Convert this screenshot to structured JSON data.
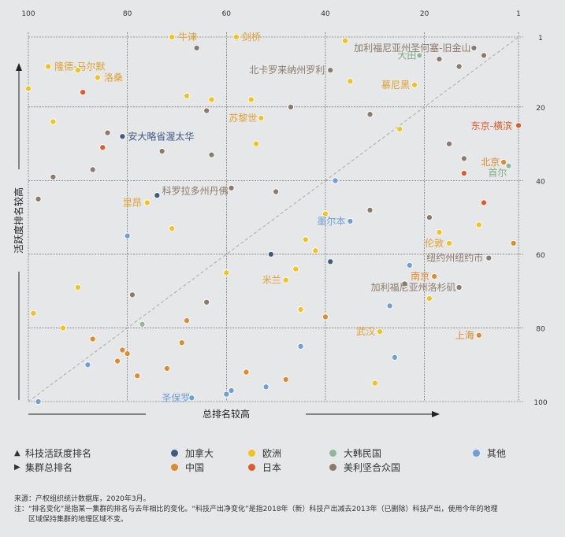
{
  "chart_data": {
    "type": "scatter",
    "x_label": "总排名较高",
    "y_label": "活跃度排名较高",
    "x_ticks": [
      "100",
      "80",
      "60",
      "40",
      "20",
      "1"
    ],
    "y_ticks": [
      "1",
      "20",
      "40",
      "60",
      "80",
      "100"
    ],
    "xlim": [
      100,
      1
    ],
    "ylim": [
      1,
      100
    ],
    "diagonal": true,
    "grid": true,
    "colors": {
      "canada": "#3e5b84",
      "europe": "#f5c21a",
      "korea": "#8fb89a",
      "other": "#6f9fd6",
      "china": "#e08a2c",
      "japan": "#e05a2b",
      "usa": "#8c7a6b"
    },
    "label_colors": {
      "canada": "#3e5b84",
      "europe": "#e0a030",
      "korea": "#7fae8a",
      "other": "#6f9fd6",
      "china": "#e08a2c",
      "japan": "#e05a2b",
      "usa": "#8c7a6b"
    },
    "points": [
      {
        "x": 71,
        "y": 1,
        "g": "europe",
        "label": "牛津"
      },
      {
        "x": 58,
        "y": 1,
        "g": "europe",
        "label": "剑桥"
      },
      {
        "x": 66,
        "y": 4,
        "g": "usa"
      },
      {
        "x": 36,
        "y": 2,
        "g": "europe"
      },
      {
        "x": 10,
        "y": 4,
        "g": "usa",
        "label": "加利福尼亚州圣何塞-旧金山"
      },
      {
        "x": 8,
        "y": 6,
        "g": "usa"
      },
      {
        "x": 21,
        "y": 6,
        "g": "korea",
        "label": "大田"
      },
      {
        "x": 17,
        "y": 7,
        "g": "usa"
      },
      {
        "x": 13,
        "y": 9,
        "g": "usa"
      },
      {
        "x": 96,
        "y": 9,
        "g": "europe",
        "label": "隆德-马尔默"
      },
      {
        "x": 90,
        "y": 10,
        "g": "europe"
      },
      {
        "x": 86,
        "y": 12,
        "g": "europe",
        "label": "洛桑"
      },
      {
        "x": 39,
        "y": 10,
        "g": "usa",
        "label": "北卡罗来纳州罗利"
      },
      {
        "x": 35,
        "y": 13,
        "g": "europe"
      },
      {
        "x": 22,
        "y": 14,
        "g": "europe",
        "label": "慕尼黑"
      },
      {
        "x": 100,
        "y": 15,
        "g": "europe"
      },
      {
        "x": 89,
        "y": 16,
        "g": "japan"
      },
      {
        "x": 68,
        "y": 17,
        "g": "europe"
      },
      {
        "x": 63,
        "y": 18,
        "g": "europe"
      },
      {
        "x": 55,
        "y": 18,
        "g": "europe"
      },
      {
        "x": 47,
        "y": 20,
        "g": "usa"
      },
      {
        "x": 64,
        "y": 21,
        "g": "usa"
      },
      {
        "x": 31,
        "y": 22,
        "g": "usa"
      },
      {
        "x": 53,
        "y": 23,
        "g": "europe",
        "label": "苏黎世"
      },
      {
        "x": 95,
        "y": 24,
        "g": "europe"
      },
      {
        "x": 1,
        "y": 25,
        "g": "japan",
        "label": "东京-横滨"
      },
      {
        "x": 25,
        "y": 26,
        "g": "europe"
      },
      {
        "x": 84,
        "y": 27,
        "g": "usa"
      },
      {
        "x": 81,
        "y": 28,
        "g": "canada",
        "label": "安大略省渥太华"
      },
      {
        "x": 54,
        "y": 30,
        "g": "europe"
      },
      {
        "x": 15,
        "y": 30,
        "g": "usa"
      },
      {
        "x": 85,
        "y": 31,
        "g": "japan"
      },
      {
        "x": 73,
        "y": 32,
        "g": "usa"
      },
      {
        "x": 63,
        "y": 33,
        "g": "usa"
      },
      {
        "x": 12,
        "y": 34,
        "g": "usa"
      },
      {
        "x": 4,
        "y": 35,
        "g": "china",
        "label": "北京"
      },
      {
        "x": 3,
        "y": 36,
        "g": "korea",
        "label": "首尔"
      },
      {
        "x": 87,
        "y": 37,
        "g": "usa"
      },
      {
        "x": 12,
        "y": 38,
        "g": "japan"
      },
      {
        "x": 95,
        "y": 39,
        "g": "usa"
      },
      {
        "x": 38,
        "y": 40,
        "g": "other"
      },
      {
        "x": 59,
        "y": 42,
        "g": "usa",
        "label": "科罗拉多州丹佛"
      },
      {
        "x": 50,
        "y": 43,
        "g": "usa"
      },
      {
        "x": 74,
        "y": 44,
        "g": "canada"
      },
      {
        "x": 98,
        "y": 45,
        "g": "usa"
      },
      {
        "x": 76,
        "y": 46,
        "g": "europe",
        "label": "里昂"
      },
      {
        "x": 8,
        "y": 46,
        "g": "japan"
      },
      {
        "x": 31,
        "y": 48,
        "g": "usa"
      },
      {
        "x": 40,
        "y": 49,
        "g": "europe"
      },
      {
        "x": 19,
        "y": 50,
        "g": "usa"
      },
      {
        "x": 35,
        "y": 51,
        "g": "other",
        "label": "墨尔本"
      },
      {
        "x": 9,
        "y": 52,
        "g": "europe"
      },
      {
        "x": 71,
        "y": 53,
        "g": "europe"
      },
      {
        "x": 17,
        "y": 54,
        "g": "europe"
      },
      {
        "x": 80,
        "y": 55,
        "g": "other"
      },
      {
        "x": 44,
        "y": 56,
        "g": "europe"
      },
      {
        "x": 15,
        "y": 57,
        "g": "europe",
        "label": "伦敦"
      },
      {
        "x": 2,
        "y": 57,
        "g": "china"
      },
      {
        "x": 42,
        "y": 59,
        "g": "europe"
      },
      {
        "x": 51,
        "y": 60,
        "g": "canada"
      },
      {
        "x": 7,
        "y": 61,
        "g": "usa",
        "label": "纽约州纽约市"
      },
      {
        "x": 39,
        "y": 62,
        "g": "canada"
      },
      {
        "x": 23,
        "y": 63,
        "g": "other"
      },
      {
        "x": 46,
        "y": 64,
        "g": "europe"
      },
      {
        "x": 60,
        "y": 65,
        "g": "europe"
      },
      {
        "x": 18,
        "y": 66,
        "g": "china",
        "label": "南京"
      },
      {
        "x": 48,
        "y": 67,
        "g": "europe",
        "label": "米兰"
      },
      {
        "x": 24,
        "y": 68,
        "g": "usa"
      },
      {
        "x": 90,
        "y": 69,
        "g": "europe"
      },
      {
        "x": 13,
        "y": 69,
        "g": "usa",
        "label": "加利福尼亚州洛杉矶"
      },
      {
        "x": 79,
        "y": 71,
        "g": "usa"
      },
      {
        "x": 19,
        "y": 72,
        "g": "europe"
      },
      {
        "x": 64,
        "y": 73,
        "g": "usa"
      },
      {
        "x": 27,
        "y": 74,
        "g": "other"
      },
      {
        "x": 45,
        "y": 75,
        "g": "europe"
      },
      {
        "x": 99,
        "y": 76,
        "g": "europe"
      },
      {
        "x": 40,
        "y": 77,
        "g": "china"
      },
      {
        "x": 68,
        "y": 78,
        "g": "china"
      },
      {
        "x": 77,
        "y": 79,
        "g": "korea"
      },
      {
        "x": 93,
        "y": 80,
        "g": "europe"
      },
      {
        "x": 29,
        "y": 81,
        "g": "europe",
        "label": "武汉"
      },
      {
        "x": 9,
        "y": 82,
        "g": "china",
        "label": "上海"
      },
      {
        "x": 87,
        "y": 83,
        "g": "china"
      },
      {
        "x": 69,
        "y": 84,
        "g": "china"
      },
      {
        "x": 45,
        "y": 85,
        "g": "other"
      },
      {
        "x": 81,
        "y": 86,
        "g": "china"
      },
      {
        "x": 80,
        "y": 87,
        "g": "china"
      },
      {
        "x": 26,
        "y": 88,
        "g": "other"
      },
      {
        "x": 82,
        "y": 89,
        "g": "china"
      },
      {
        "x": 88,
        "y": 90,
        "g": "other"
      },
      {
        "x": 72,
        "y": 91,
        "g": "china"
      },
      {
        "x": 56,
        "y": 92,
        "g": "china"
      },
      {
        "x": 78,
        "y": 93,
        "g": "china"
      },
      {
        "x": 48,
        "y": 94,
        "g": "china"
      },
      {
        "x": 30,
        "y": 95,
        "g": "europe"
      },
      {
        "x": 52,
        "y": 96,
        "g": "other"
      },
      {
        "x": 59,
        "y": 97,
        "g": "other"
      },
      {
        "x": 60,
        "y": 98,
        "g": "other"
      },
      {
        "x": 67,
        "y": 99,
        "g": "other",
        "label": "圣保罗"
      },
      {
        "x": 98,
        "y": 100,
        "g": "other"
      }
    ]
  },
  "legend": {
    "activity_rank": "科技活跃度排名",
    "cluster_rank": "集群总排名",
    "canada": "加拿大",
    "europe": "欧洲",
    "korea": "大韩民国",
    "other": "其他",
    "china": "中国",
    "japan": "日本",
    "usa": "美利坚合众国"
  },
  "footer": {
    "source": "来源：产权组织统计数据库，2020年3月。",
    "note1": "注：“排名变化”是指某一集群的排名与去年相比的变化。“科技产出净变化”是指2018年（新）科技产出减去2013年（已删除）科技产出，使用今年的地理",
    "note2": "区域保持集群的地理区域不变。"
  }
}
